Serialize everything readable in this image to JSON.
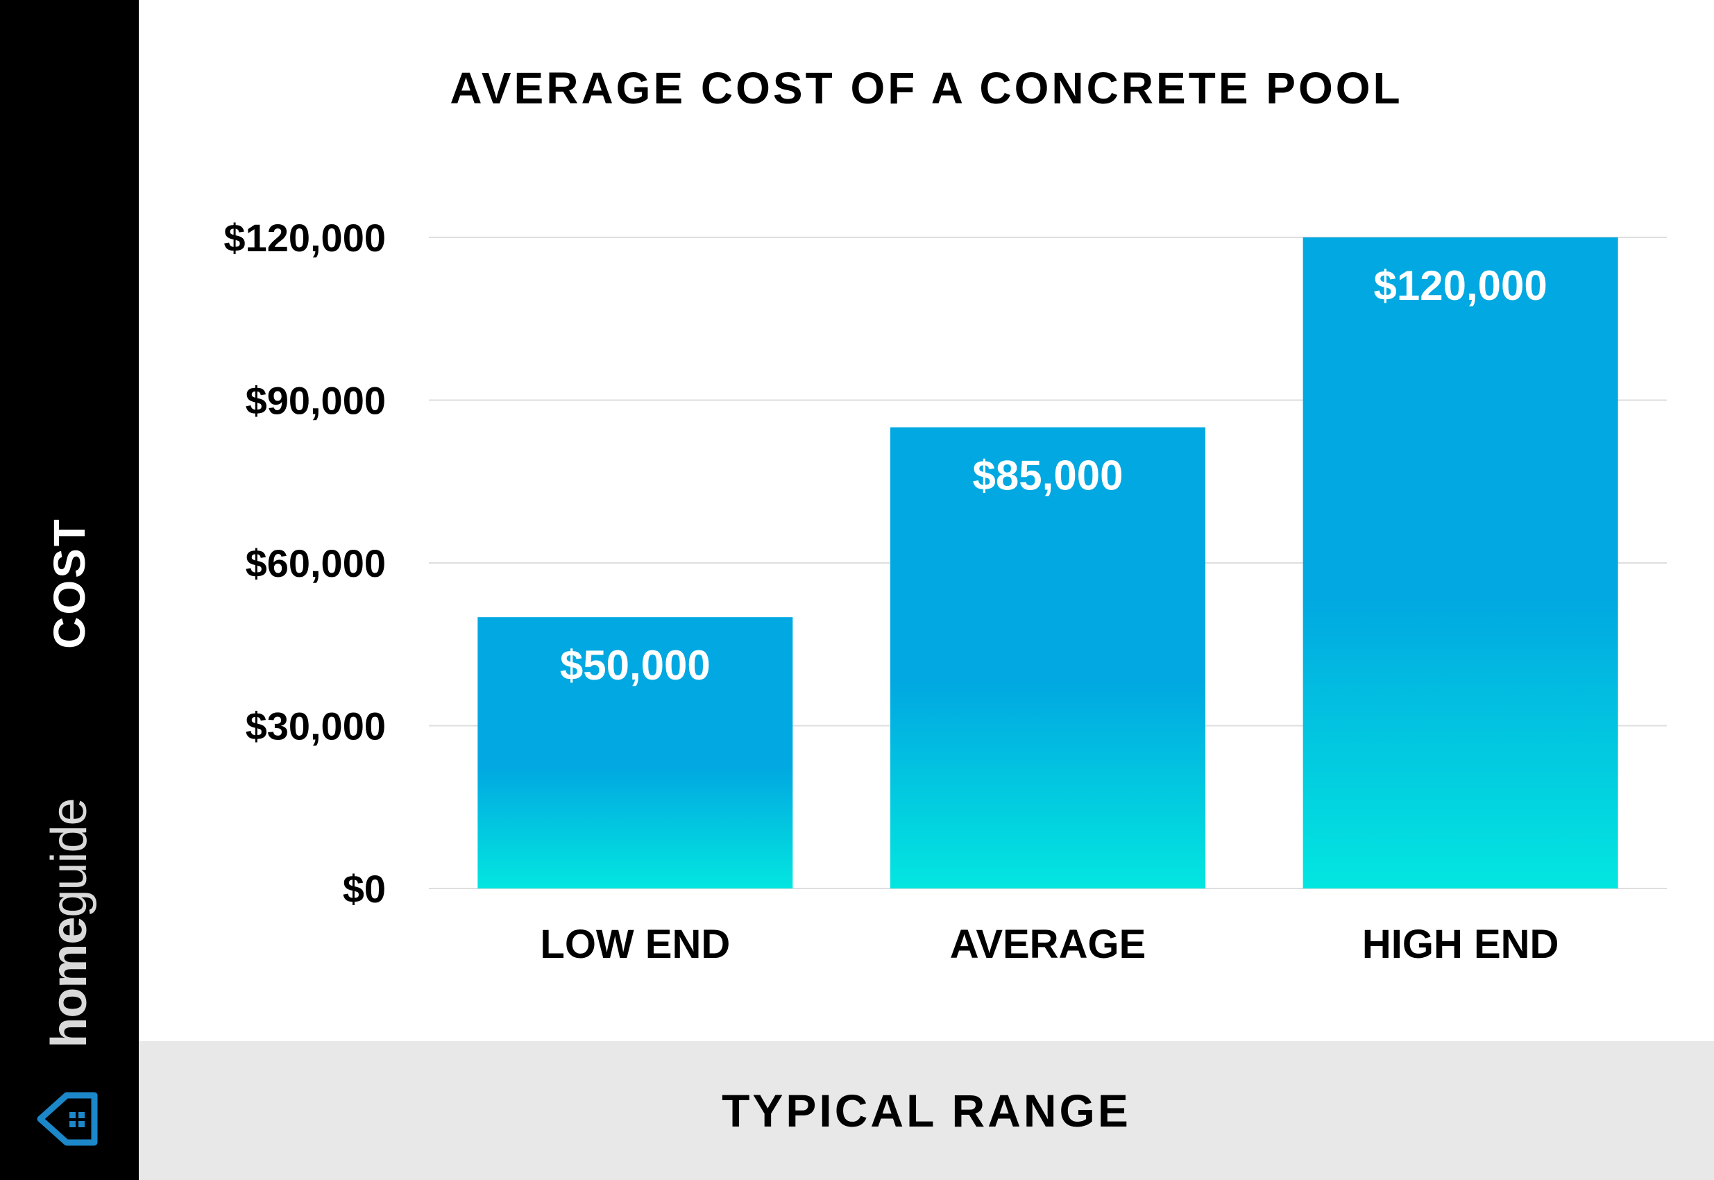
{
  "sidebar": {
    "axis_label": "COST",
    "brand_home": "home",
    "brand_guide": "guide",
    "logo_icon": "house-icon"
  },
  "footer": {
    "label": "TYPICAL RANGE"
  },
  "colors": {
    "bar_top": "#01A8E1",
    "bar_bottom": "#03E6E0",
    "sidebar": "#000000",
    "footer": "#E8E8E8",
    "logo": "#1C87C9"
  },
  "chart_data": {
    "type": "bar",
    "title": "AVERAGE COST OF A CONCRETE POOL",
    "xlabel": "TYPICAL RANGE",
    "ylabel": "COST",
    "categories": [
      "LOW END",
      "AVERAGE",
      "HIGH END"
    ],
    "values": [
      50000,
      85000,
      120000
    ],
    "value_labels": [
      "$50,000",
      "$85,000",
      "$120,000"
    ],
    "ylim": [
      0,
      120000
    ],
    "yticks": [
      0,
      30000,
      60000,
      90000,
      120000
    ],
    "ytick_labels": [
      "$0",
      "$30,000",
      "$60,000",
      "$90,000",
      "$120,000"
    ],
    "grid": true,
    "legend": "none"
  }
}
